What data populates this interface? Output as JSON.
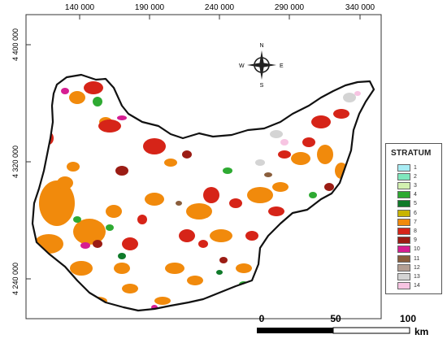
{
  "map": {
    "x_ticks": [
      "140 000",
      "190 000",
      "240 000",
      "290 000",
      "340 000"
    ],
    "y_ticks": [
      "4 400 000",
      "4 320 000",
      "4 240 000"
    ]
  },
  "compass": {
    "n": "N",
    "s": "S",
    "e": "E",
    "w": "W"
  },
  "legend": {
    "title": "STRATUM",
    "items": [
      {
        "label": "1",
        "color": "#a8ecf4"
      },
      {
        "label": "2",
        "color": "#7fe8bd"
      },
      {
        "label": "3",
        "color": "#d3f0b0"
      },
      {
        "label": "4",
        "color": "#2eaa32"
      },
      {
        "label": "5",
        "color": "#0f7a2a"
      },
      {
        "label": "6",
        "color": "#c8b400"
      },
      {
        "label": "7",
        "color": "#f18a0c"
      },
      {
        "label": "8",
        "color": "#d62418"
      },
      {
        "label": "9",
        "color": "#9b1c14"
      },
      {
        "label": "10",
        "color": "#d61e92"
      },
      {
        "label": "11",
        "color": "#8a5e3c"
      },
      {
        "label": "12",
        "color": "#b39e92"
      },
      {
        "label": "13",
        "color": "#d4d4d4"
      },
      {
        "label": "14",
        "color": "#f7c4e2"
      }
    ]
  },
  "scale_bar": {
    "labels": [
      "0",
      "50",
      "100"
    ],
    "unit": "km"
  }
}
